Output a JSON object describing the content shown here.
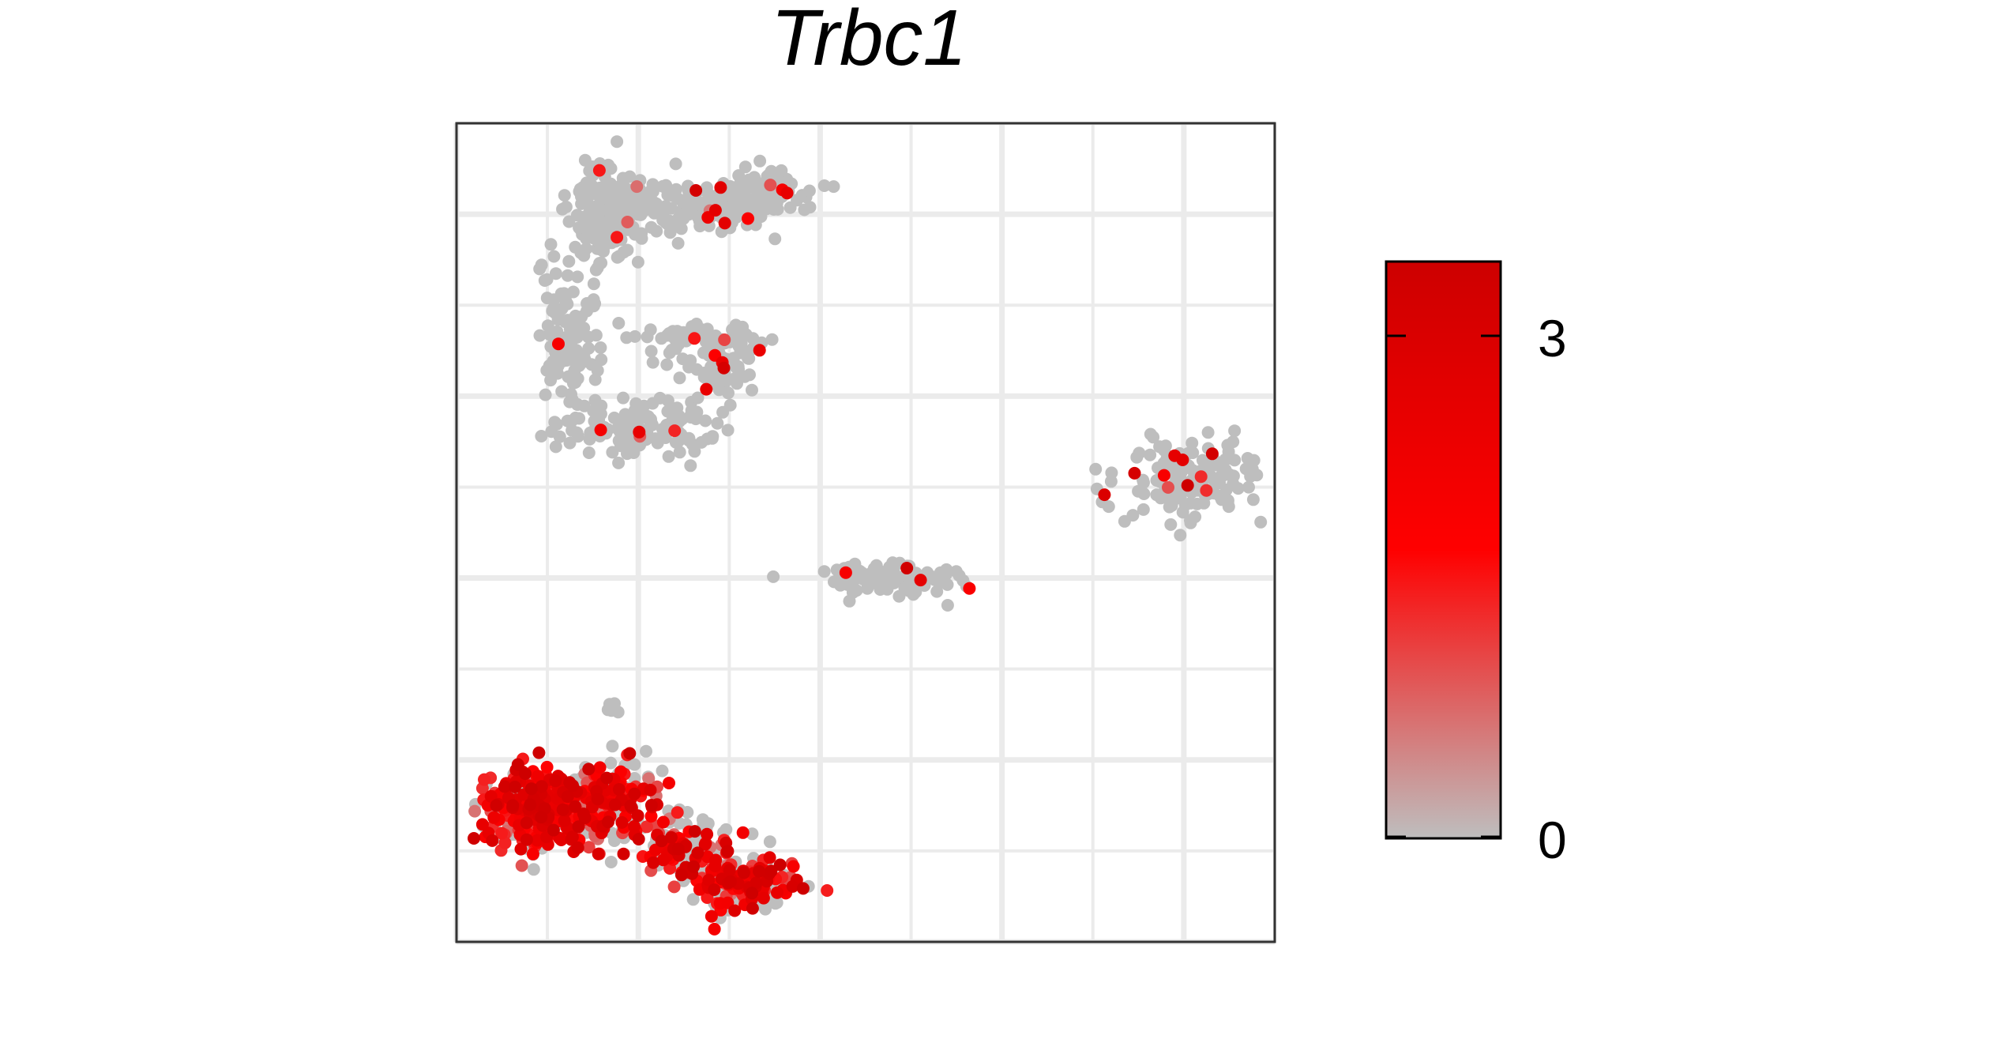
{
  "chart_data": {
    "type": "scatter",
    "title": "Trbc1",
    "xlabel": "",
    "ylabel": "",
    "xlim": [
      0,
      9
    ],
    "ylim": [
      0,
      9
    ],
    "grid": true,
    "legend": {
      "kind": "colorbar",
      "placement": "right",
      "range": [
        0,
        3.4
      ],
      "ticks": [
        0,
        3
      ],
      "tick_labels": [
        "0",
        "3"
      ],
      "colors": {
        "low": "#BEBEBE",
        "mid": "#FF0000",
        "high": "#CD0000"
      }
    },
    "clusters": [
      {
        "cx": 1.65,
        "cy": 8.05,
        "sx": 0.2,
        "sy": 0.25,
        "n": 200,
        "expr": 0.02
      },
      {
        "cx": 2.7,
        "cy": 8.1,
        "sx": 0.45,
        "sy": 0.14,
        "n": 160,
        "expr": 0.03
      },
      {
        "cx": 3.35,
        "cy": 8.25,
        "sx": 0.2,
        "sy": 0.12,
        "n": 80,
        "expr": 0.03
      },
      {
        "cx": 1.25,
        "cy": 6.65,
        "sx": 0.16,
        "sy": 0.4,
        "n": 120,
        "expr": 0.02
      },
      {
        "cx": 1.95,
        "cy": 5.65,
        "sx": 0.45,
        "sy": 0.14,
        "n": 140,
        "expr": 0.02
      },
      {
        "cx": 2.7,
        "cy": 6.6,
        "sx": 0.35,
        "sy": 0.12,
        "n": 70,
        "expr": 0.05
      },
      {
        "cx": 2.9,
        "cy": 6.3,
        "sx": 0.2,
        "sy": 0.2,
        "n": 60,
        "expr": 0.06
      },
      {
        "cx": 4.8,
        "cy": 4.0,
        "sx": 0.35,
        "sy": 0.09,
        "n": 110,
        "expr": 0.04
      },
      {
        "cx": 8.1,
        "cy": 5.1,
        "sx": 0.4,
        "sy": 0.2,
        "n": 150,
        "expr": 0.05
      },
      {
        "cx": 1.7,
        "cy": 2.6,
        "sx": 0.05,
        "sy": 0.05,
        "n": 6,
        "expr": 0.0
      },
      {
        "cx": 0.75,
        "cy": 1.45,
        "sx": 0.25,
        "sy": 0.25,
        "n": 230,
        "expr": 0.8
      },
      {
        "cx": 1.6,
        "cy": 1.55,
        "sx": 0.35,
        "sy": 0.22,
        "n": 240,
        "expr": 0.7
      },
      {
        "cx": 2.45,
        "cy": 1.05,
        "sx": 0.28,
        "sy": 0.15,
        "n": 110,
        "expr": 0.55
      },
      {
        "cx": 3.15,
        "cy": 0.65,
        "sx": 0.28,
        "sy": 0.15,
        "n": 220,
        "expr": 0.5
      }
    ]
  }
}
